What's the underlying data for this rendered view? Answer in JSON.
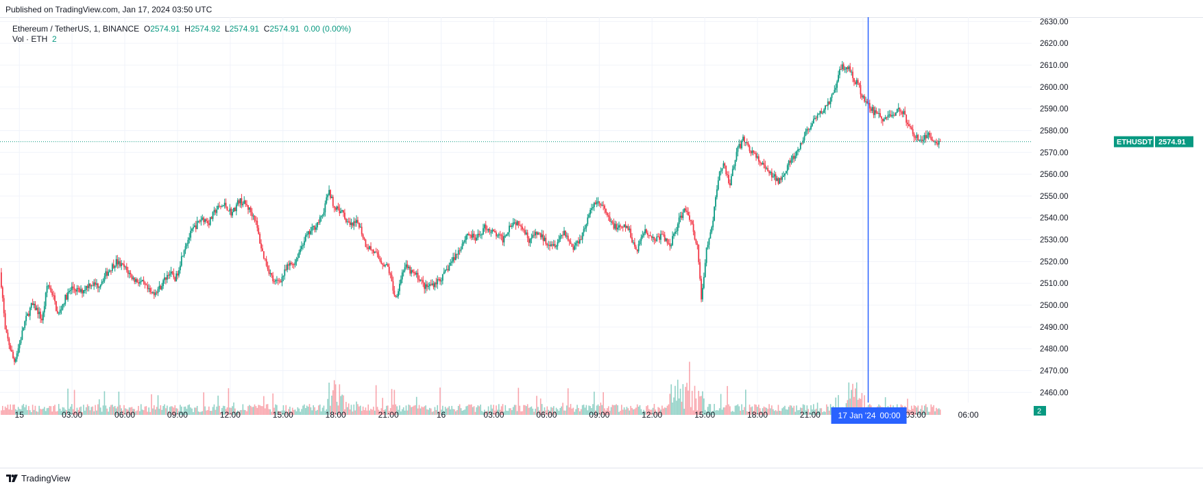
{
  "header": {
    "published": "Published on TradingView.com, Jan 17, 2024 03:50 UTC"
  },
  "legend": {
    "symbol": "Ethereum / TetherUS, 1, BINANCE",
    "o_label": "O",
    "o_value": "2574.91",
    "h_label": "H",
    "h_value": "2574.92",
    "l_label": "L",
    "l_value": "2574.91",
    "c_label": "C",
    "c_value": "2574.91",
    "change": "0.00 (0.00%)",
    "vol_label": "Vol · ETH",
    "vol_value": "2"
  },
  "price_badge": {
    "symbol": "ETHUSDT",
    "price": "2574.91"
  },
  "volume_badge": "2",
  "crosshair_label": {
    "date": "17 Jan '24",
    "time": "00:00"
  },
  "footer": {
    "brand": "TradingView"
  },
  "colors": {
    "up": "#089981",
    "down": "#f23645",
    "grid": "#f0f3fa",
    "crosshair": "#2962ff",
    "axis_text": "#131722"
  },
  "chart_data": {
    "type": "candlestick",
    "title": "Ethereum / TetherUS, 1, BINANCE",
    "y_axis": {
      "ticks": [
        2460,
        2470,
        2480,
        2490,
        2500,
        2510,
        2520,
        2530,
        2540,
        2550,
        2560,
        2570,
        2580,
        2590,
        2600,
        2610,
        2620,
        2630
      ],
      "ylim": [
        2456,
        2632
      ]
    },
    "x_axis": {
      "ticks": [
        "15",
        "03:00",
        "06:00",
        "09:00",
        "12:00",
        "15:00",
        "18:00",
        "21:00",
        "16",
        "03:00",
        "06:00",
        "09:00",
        "12:00",
        "15:00",
        "18:00",
        "21:00",
        "17 Jan '24",
        "03:00",
        "06:00"
      ],
      "hours": [
        0,
        3,
        6,
        9,
        12,
        15,
        18,
        21,
        24,
        27,
        30,
        33,
        36,
        39,
        42,
        45,
        48,
        51,
        54
      ],
      "range_hours": [
        -1.1,
        57.6
      ]
    },
    "price_path": {
      "hours": [
        -1.1,
        -1.0,
        -0.8,
        -0.5,
        -0.3,
        0.0,
        0.3,
        0.7,
        1.0,
        1.3,
        1.6,
        1.9,
        2.2,
        2.6,
        3.0,
        3.5,
        4.0,
        4.5,
        5.0,
        5.5,
        6.0,
        6.5,
        7.0,
        7.5,
        8.0,
        8.5,
        8.9,
        9.4,
        9.9,
        10.4,
        10.8,
        11.2,
        11.7,
        12.1,
        12.5,
        12.9,
        13.4,
        13.8,
        14.1,
        14.5,
        14.9,
        15.3,
        15.7,
        16.2,
        16.7,
        17.2,
        17.6,
        18.0,
        18.4,
        18.8,
        19.3,
        19.7,
        20.1,
        20.6,
        21.0,
        21.4,
        21.9,
        22.3,
        22.7,
        23.1,
        23.6,
        24.1,
        24.6,
        25.0,
        25.5,
        26.0,
        26.5,
        27.0,
        27.5,
        28.0,
        28.5,
        29.0,
        29.5,
        30.0,
        30.5,
        31.0,
        31.5,
        32.0,
        32.4,
        32.8,
        33.2,
        33.6,
        34.1,
        34.6,
        35.1,
        35.6,
        36.1,
        36.6,
        37.0,
        37.5,
        37.9,
        38.2,
        38.4,
        38.6,
        38.8,
        39.1,
        39.4,
        39.8,
        40.1,
        40.4,
        40.8,
        41.2,
        41.7,
        42.2,
        42.7,
        43.2,
        43.8,
        44.3,
        44.8,
        45.3,
        45.8,
        46.3,
        46.8,
        47.2,
        47.7,
        48.2,
        48.7,
        49.2,
        49.7,
        50.2,
        50.6,
        51.0,
        51.4,
        51.8,
        52.1,
        52.4
      ],
      "prices": [
        2515,
        2508,
        2488,
        2480,
        2474,
        2482,
        2492,
        2500,
        2498,
        2493,
        2510,
        2505,
        2495,
        2503,
        2508,
        2506,
        2510,
        2509,
        2515,
        2520,
        2517,
        2512,
        2510,
        2505,
        2508,
        2515,
        2512,
        2527,
        2535,
        2540,
        2538,
        2544,
        2546,
        2542,
        2548,
        2546,
        2540,
        2525,
        2518,
        2510,
        2512,
        2518,
        2520,
        2530,
        2535,
        2540,
        2552,
        2544,
        2542,
        2536,
        2538,
        2528,
        2525,
        2520,
        2517,
        2503,
        2518,
        2515,
        2513,
        2508,
        2510,
        2513,
        2520,
        2525,
        2533,
        2530,
        2536,
        2533,
        2530,
        2538,
        2538,
        2530,
        2533,
        2529,
        2528,
        2534,
        2526,
        2532,
        2541,
        2548,
        2545,
        2538,
        2535,
        2536,
        2525,
        2535,
        2530,
        2532,
        2527,
        2538,
        2545,
        2539,
        2532,
        2526,
        2502,
        2525,
        2535,
        2560,
        2565,
        2555,
        2570,
        2576,
        2570,
        2565,
        2560,
        2557,
        2565,
        2570,
        2580,
        2585,
        2590,
        2596,
        2610,
        2608,
        2601,
        2592,
        2588,
        2585,
        2588,
        2590,
        2582,
        2577,
        2576,
        2578,
        2575,
        2574.91
      ]
    },
    "last_price": 2574.91,
    "crosshair_hour": 48.3
  }
}
